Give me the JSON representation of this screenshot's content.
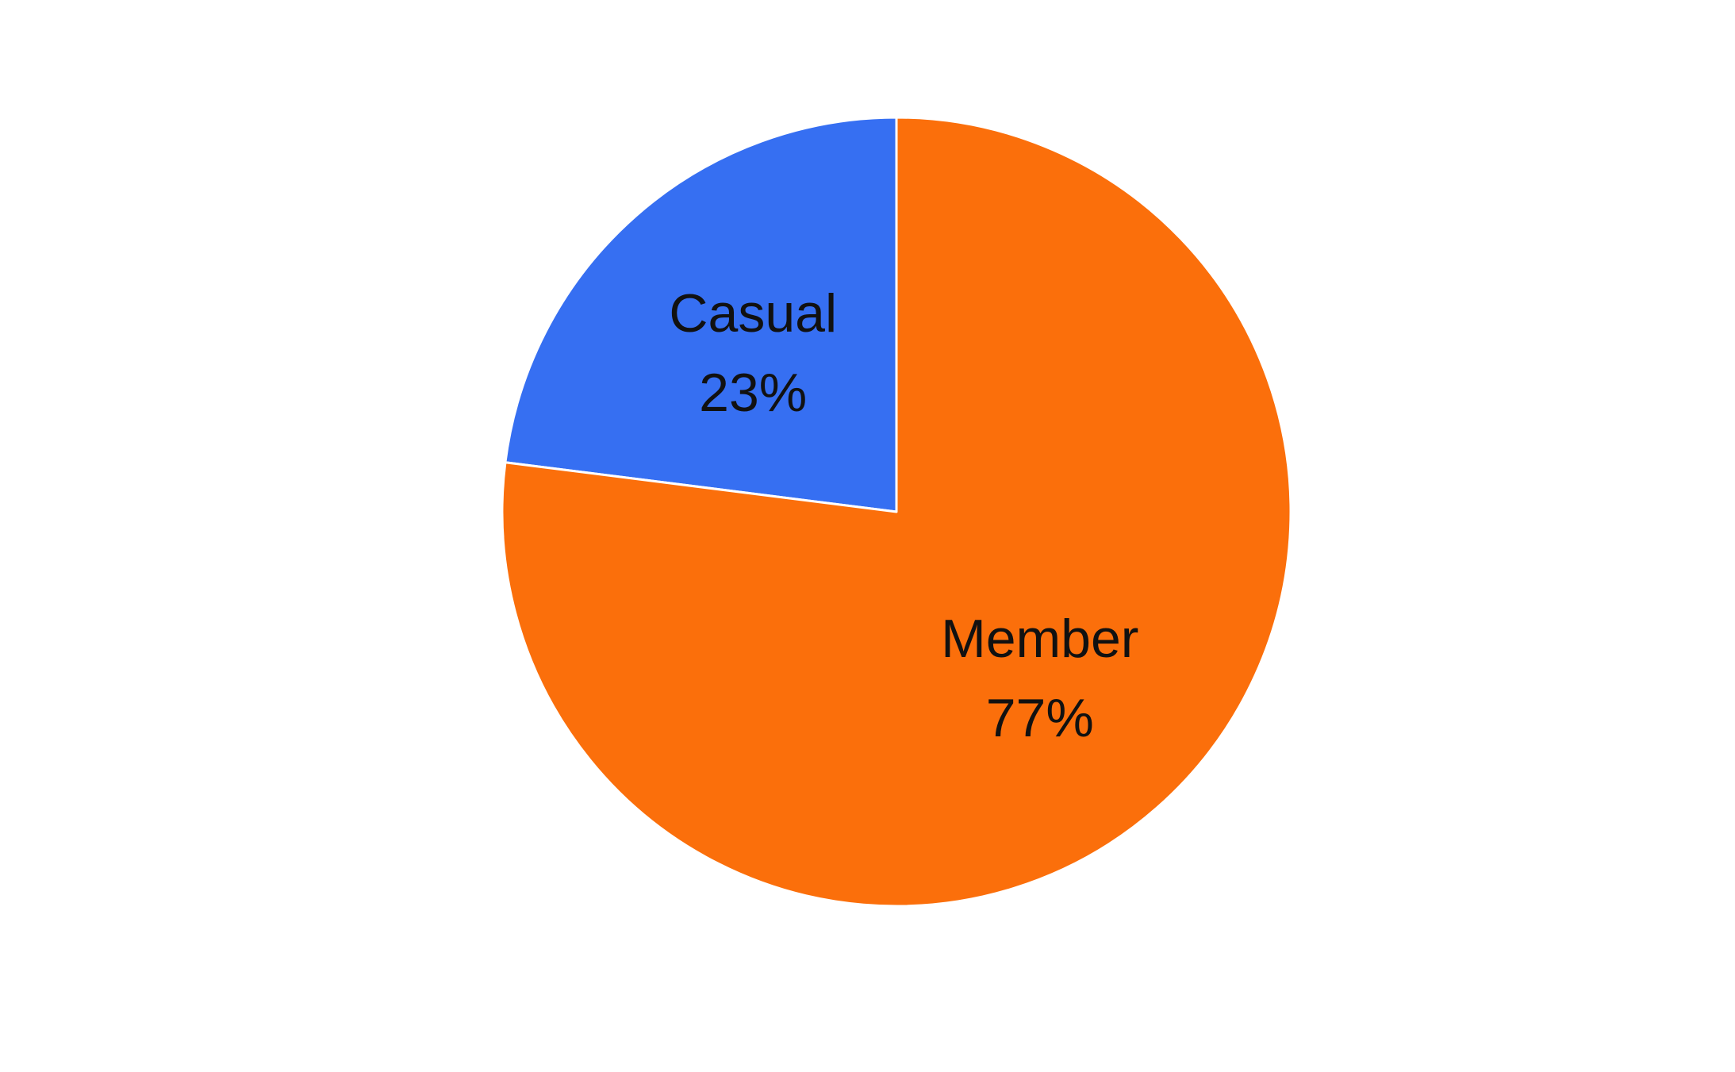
{
  "chart_data": {
    "type": "pie",
    "slices": [
      {
        "label": "Casual",
        "value": 23,
        "percent_label": "23%",
        "color": "#366ff2"
      },
      {
        "label": "Member",
        "value": 77,
        "percent_label": "77%",
        "color": "#fb6f0b"
      }
    ],
    "start_angle_deg": 0,
    "direction": "counterclockwise",
    "slice_border_color": "#ffffff"
  }
}
